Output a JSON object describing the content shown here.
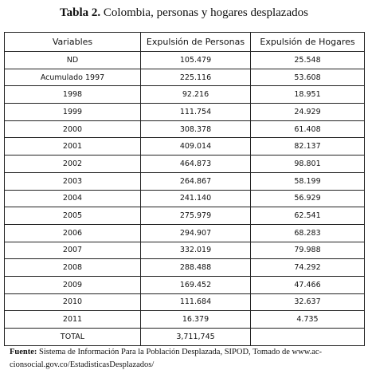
{
  "title": {
    "label": "Tabla 2.",
    "text": "Colombia, personas y hogares desplazados"
  },
  "table": {
    "header": [
      "Variables",
      "Expulsión de Personas",
      "Expulsión de Hogares"
    ],
    "rows": [
      [
        "ND",
        "105.479",
        "25.548"
      ],
      [
        "Acumulado 1997",
        "225.116",
        "53.608"
      ],
      [
        "1998",
        "92.216",
        "18.951"
      ],
      [
        "1999",
        "111.754",
        "24.929"
      ],
      [
        "2000",
        "308.378",
        "61.408"
      ],
      [
        "2001",
        "409.014",
        "82.137"
      ],
      [
        "2002",
        "464.873",
        "98.801"
      ],
      [
        "2003",
        "264.867",
        "58.199"
      ],
      [
        "2004",
        "241.140",
        "56.929"
      ],
      [
        "2005",
        "275.979",
        "62.541"
      ],
      [
        "2006",
        "294.907",
        "68.283"
      ],
      [
        "2007",
        "332.019",
        "79.988"
      ],
      [
        "2008",
        "288.488",
        "74.292"
      ],
      [
        "2009",
        "169.452",
        "47.466"
      ],
      [
        "2010",
        "111.684",
        "32.637"
      ],
      [
        "2011",
        "16.379",
        "4.735"
      ],
      [
        "TOTAL",
        "3,711,745"
      ]
    ]
  },
  "footnote": {
    "label": "Fuente:",
    "lines": [
      "Sistema de Información Para la Población Desplazada, SIPOD, Tomado de www.ac-",
      "cionsocial.gov.co/EstadisticasDesplazados/"
    ]
  }
}
